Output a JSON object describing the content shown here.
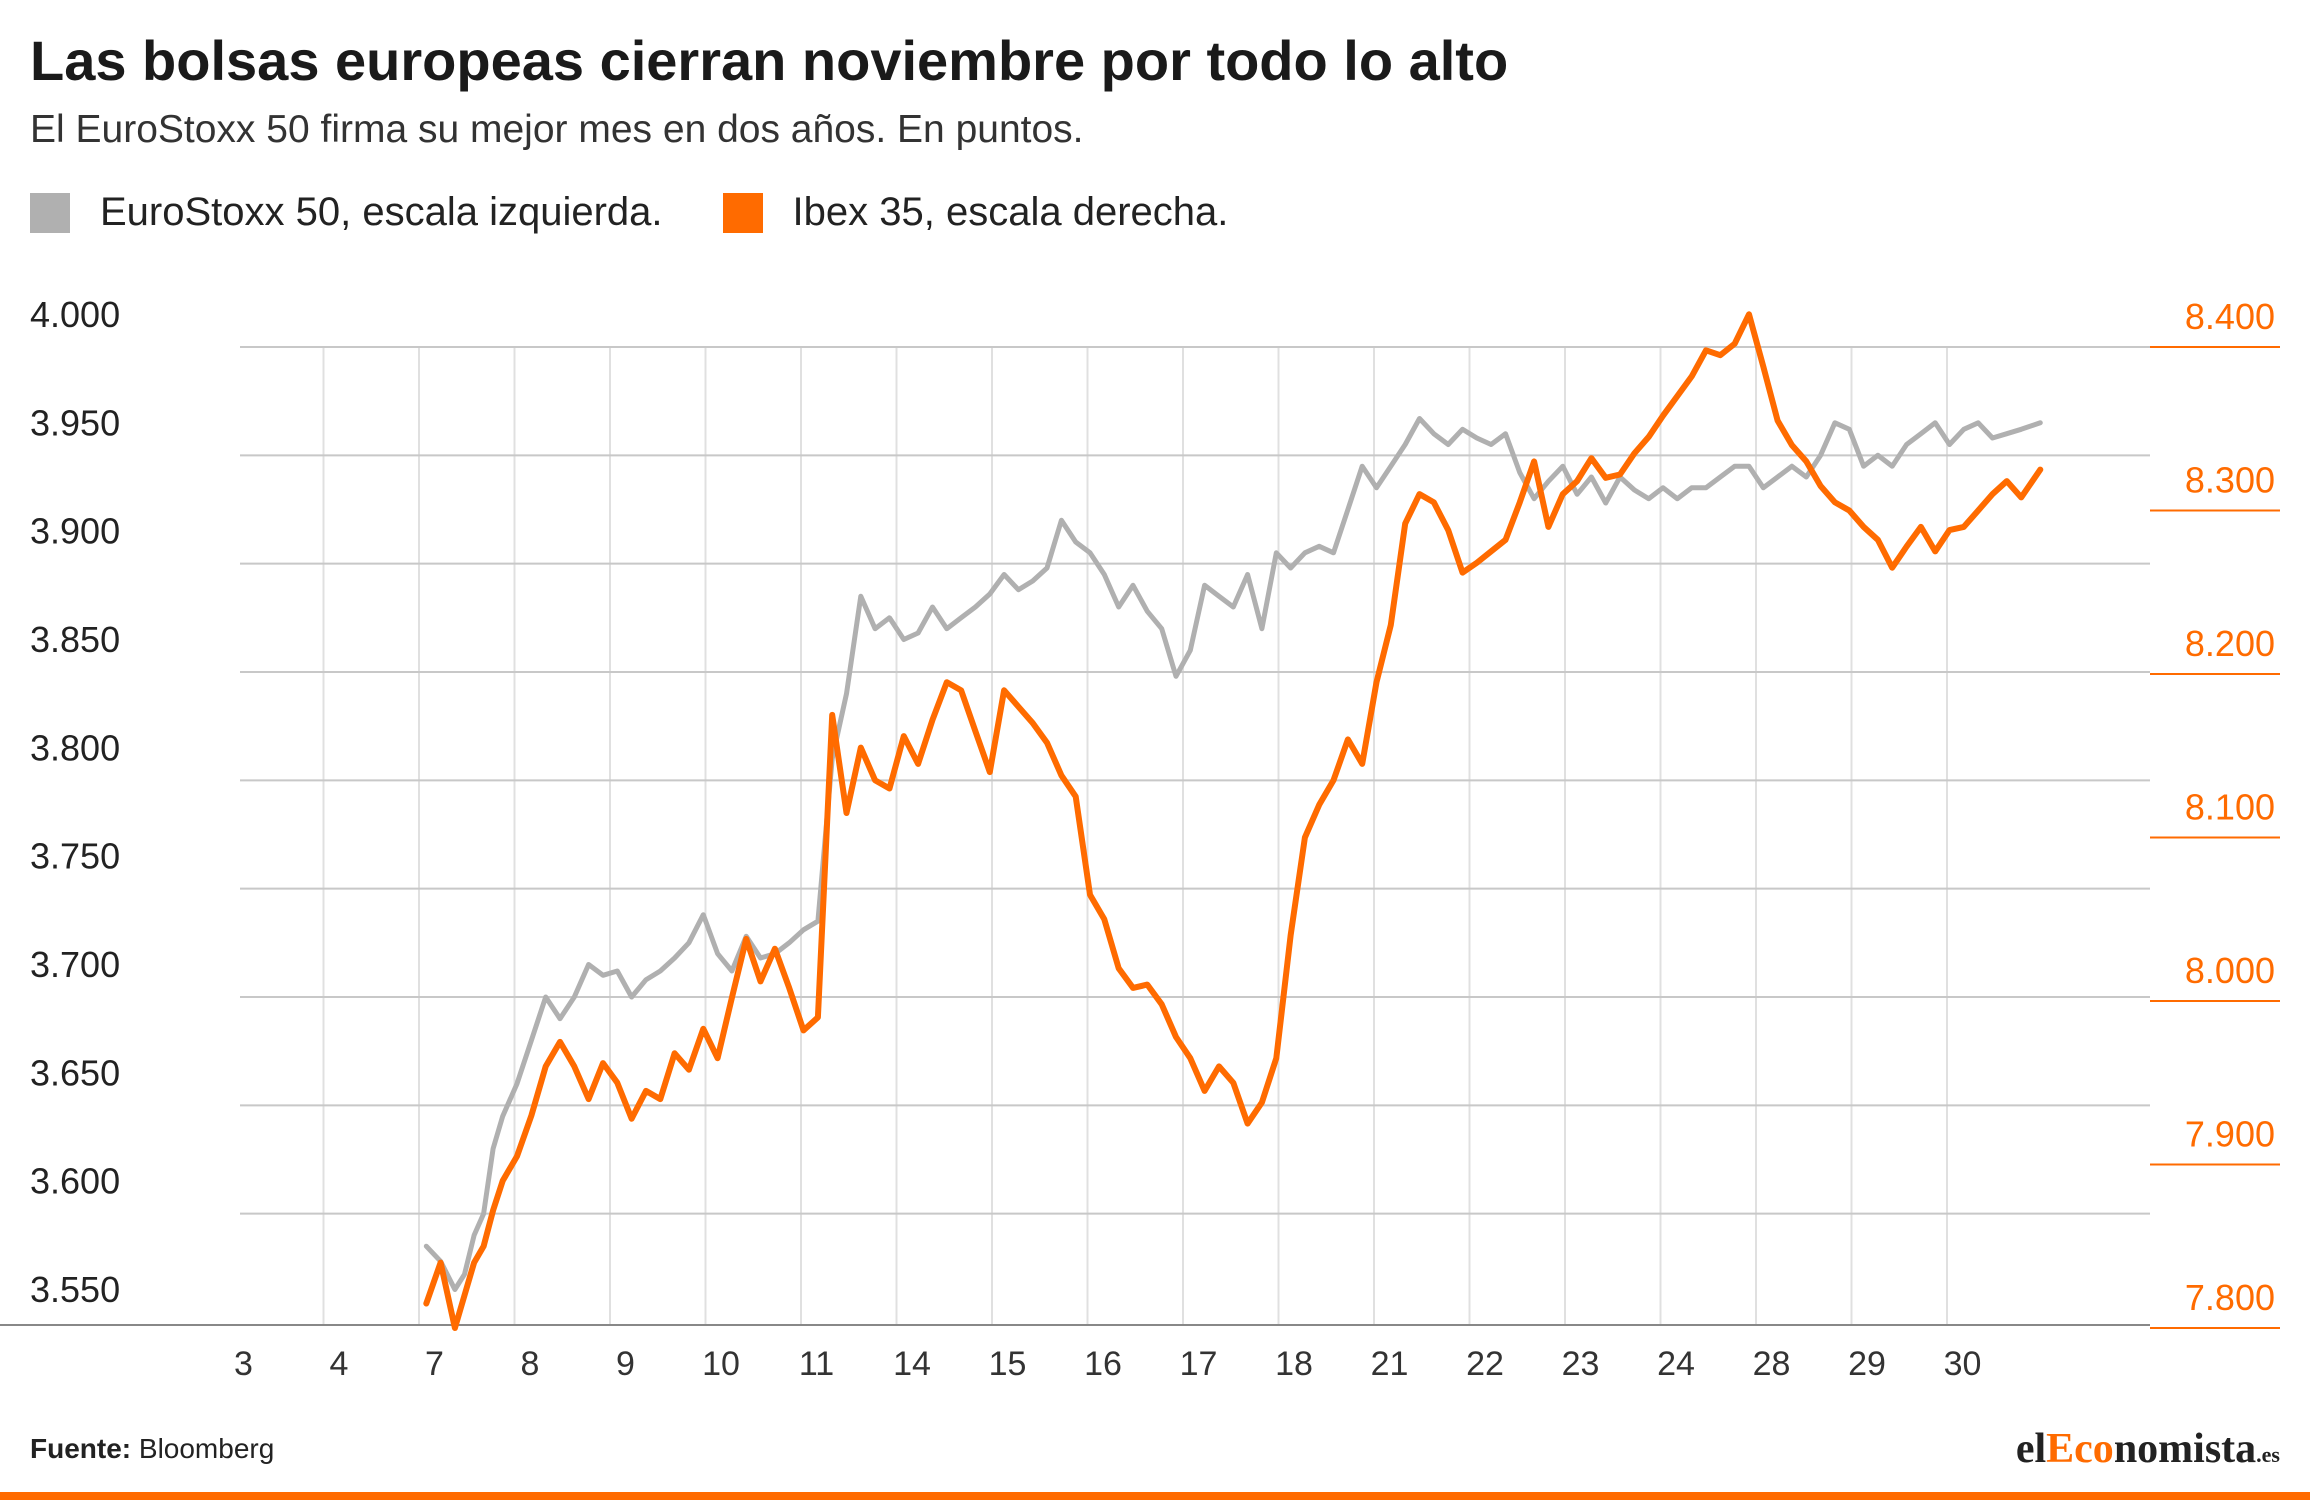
{
  "title": "Las bolsas europeas cierran noviembre por todo lo alto",
  "subtitle": "El EuroStoxx 50 firma su mejor mes en dos años. En puntos.",
  "legend": {
    "left_label": "EuroStoxx 50, escala izquierda.",
    "right_label": "Ibex 35, escala derecha."
  },
  "source": {
    "label": "Fuente:",
    "text": "Bloomberg"
  },
  "brand": {
    "prefix": "el",
    "accent": "Eco",
    "rest": "nomista",
    "suffix": ".es"
  },
  "colors": {
    "eurostoxx": "#b0b0b0",
    "ibex": "#ff6b00",
    "grid": "#c8c8c8",
    "right_axis": "#ff6b00"
  },
  "chart_data": {
    "type": "line",
    "x_tick_labels": [
      "3",
      "4",
      "7",
      "8",
      "9",
      "10",
      "11",
      "14",
      "15",
      "16",
      "17",
      "18",
      "21",
      "22",
      "23",
      "24",
      "28",
      "29",
      "30"
    ],
    "y_left": {
      "ticks": [
        "4.000",
        "3.950",
        "3.900",
        "3.850",
        "3.800",
        "3.750",
        "3.700",
        "3.650",
        "3.600",
        "3.550"
      ],
      "range": [
        3550,
        4000
      ]
    },
    "y_right": {
      "ticks": [
        "8.400",
        "8.300",
        "8.200",
        "8.100",
        "8.000",
        "7.900",
        "7.800"
      ],
      "range": [
        7800,
        8400
      ]
    },
    "grid": true,
    "legend_position": "top-left",
    "series": [
      {
        "name": "EuroStoxx 50, escala izquierda.",
        "axis": "left",
        "x": [
          2.6,
          2.75,
          2.9,
          3.0,
          3.1,
          3.2,
          3.3,
          3.4,
          3.55,
          3.7,
          3.85,
          4.0,
          4.15,
          4.3,
          4.45,
          4.6,
          4.75,
          4.9,
          5.05,
          5.2,
          5.35,
          5.5,
          5.65,
          5.8,
          5.95,
          6.1,
          6.25,
          6.4,
          6.55,
          6.7,
          6.85,
          7.0,
          7.15,
          7.3,
          7.45,
          7.6,
          7.75,
          7.9,
          8.05,
          8.2,
          8.35,
          8.5,
          8.65,
          8.8,
          8.95,
          9.1,
          9.25,
          9.4,
          9.55,
          9.7,
          9.85,
          10.0,
          10.15,
          10.3,
          10.45,
          10.6,
          10.75,
          10.9,
          11.05,
          11.2,
          11.35,
          11.5,
          11.65,
          11.8,
          11.95,
          12.1,
          12.25,
          12.4,
          12.55,
          12.7,
          12.85,
          13.0,
          13.15,
          13.3,
          13.45,
          13.6,
          13.75,
          13.9,
          14.05,
          14.2,
          14.35,
          14.5,
          14.65,
          14.8,
          14.95,
          15.1,
          15.25,
          15.4,
          15.55,
          15.7,
          15.85,
          16.0,
          16.15,
          16.3,
          16.45,
          16.6,
          16.75,
          16.9,
          17.05,
          17.2,
          17.35,
          17.5,
          17.65,
          17.8,
          17.95,
          18.1,
          18.25,
          18.4,
          18.55,
          18.7,
          18.85,
          19.0,
          19.15,
          19.3,
          19.5
        ],
        "y": [
          3585,
          3578,
          3565,
          3572,
          3590,
          3600,
          3630,
          3645,
          3660,
          3680,
          3700,
          3690,
          3700,
          3715,
          3710,
          3712,
          3700,
          3708,
          3712,
          3718,
          3725,
          3738,
          3720,
          3712,
          3728,
          3718,
          3720,
          3725,
          3731,
          3735,
          3810,
          3840,
          3885,
          3870,
          3875,
          3865,
          3868,
          3880,
          3870,
          3875,
          3880,
          3886,
          3895,
          3888,
          3892,
          3898,
          3920,
          3910,
          3905,
          3895,
          3880,
          3890,
          3878,
          3870,
          3848,
          3860,
          3890,
          3885,
          3880,
          3895,
          3870,
          3905,
          3898,
          3905,
          3908,
          3905,
          3925,
          3945,
          3935,
          3945,
          3955,
          3967,
          3960,
          3955,
          3962,
          3958,
          3955,
          3960,
          3942,
          3930,
          3938,
          3945,
          3932,
          3940,
          3928,
          3940,
          3934,
          3930,
          3935,
          3930,
          3935,
          3935,
          3940,
          3945,
          3945,
          3935,
          3940,
          3945,
          3940,
          3950,
          3965,
          3962,
          3945,
          3950,
          3945,
          3955,
          3960,
          3965,
          3955,
          3962,
          3965,
          3958,
          3960,
          3962,
          3965
        ]
      },
      {
        "name": "Ibex 35, escala derecha.",
        "axis": "right",
        "x": [
          2.6,
          2.75,
          2.9,
          3.0,
          3.1,
          3.2,
          3.3,
          3.4,
          3.55,
          3.7,
          3.85,
          4.0,
          4.15,
          4.3,
          4.45,
          4.6,
          4.75,
          4.9,
          5.05,
          5.2,
          5.35,
          5.5,
          5.65,
          5.8,
          5.95,
          6.1,
          6.25,
          6.4,
          6.55,
          6.7,
          6.85,
          7.0,
          7.15,
          7.3,
          7.45,
          7.6,
          7.75,
          7.9,
          8.05,
          8.2,
          8.35,
          8.5,
          8.65,
          8.8,
          8.95,
          9.1,
          9.25,
          9.4,
          9.55,
          9.7,
          9.85,
          10.0,
          10.15,
          10.3,
          10.45,
          10.6,
          10.75,
          10.9,
          11.05,
          11.2,
          11.35,
          11.5,
          11.65,
          11.8,
          11.95,
          12.1,
          12.25,
          12.4,
          12.55,
          12.7,
          12.85,
          13.0,
          13.15,
          13.3,
          13.45,
          13.6,
          13.75,
          13.9,
          14.05,
          14.2,
          14.35,
          14.5,
          14.65,
          14.8,
          14.95,
          15.1,
          15.25,
          15.4,
          15.55,
          15.7,
          15.85,
          16.0,
          16.15,
          16.3,
          16.45,
          16.6,
          16.75,
          16.9,
          17.05,
          17.2,
          17.35,
          17.5,
          17.65,
          17.8,
          17.95,
          18.1,
          18.25,
          18.4,
          18.55,
          18.7,
          18.85,
          19.0,
          19.15,
          19.3,
          19.5
        ],
        "y": [
          7815,
          7840,
          7800,
          7820,
          7840,
          7850,
          7872,
          7890,
          7905,
          7930,
          7960,
          7975,
          7960,
          7940,
          7962,
          7950,
          7928,
          7945,
          7940,
          7968,
          7958,
          7983,
          7965,
          8002,
          8038,
          8012,
          8032,
          8008,
          7982,
          7990,
          8175,
          8115,
          8155,
          8135,
          8130,
          8162,
          8145,
          8172,
          8195,
          8190,
          8165,
          8140,
          8190,
          8180,
          8170,
          8158,
          8138,
          8125,
          8065,
          8050,
          8020,
          8008,
          8010,
          7998,
          7978,
          7965,
          7945,
          7960,
          7950,
          7925,
          7938,
          7965,
          8040,
          8100,
          8120,
          8135,
          8160,
          8145,
          8195,
          8230,
          8292,
          8310,
          8305,
          8288,
          8262,
          8268,
          8275,
          8282,
          8305,
          8330,
          8290,
          8310,
          8318,
          8332,
          8320,
          8322,
          8335,
          8345,
          8358,
          8370,
          8382,
          8398,
          8395,
          8402,
          8420,
          8388,
          8355,
          8340,
          8330,
          8315,
          8305,
          8300,
          8290,
          8282,
          8265,
          8278,
          8290,
          8275,
          8288,
          8290,
          8300,
          8310,
          8318,
          8308,
          8325
        ]
      }
    ]
  }
}
